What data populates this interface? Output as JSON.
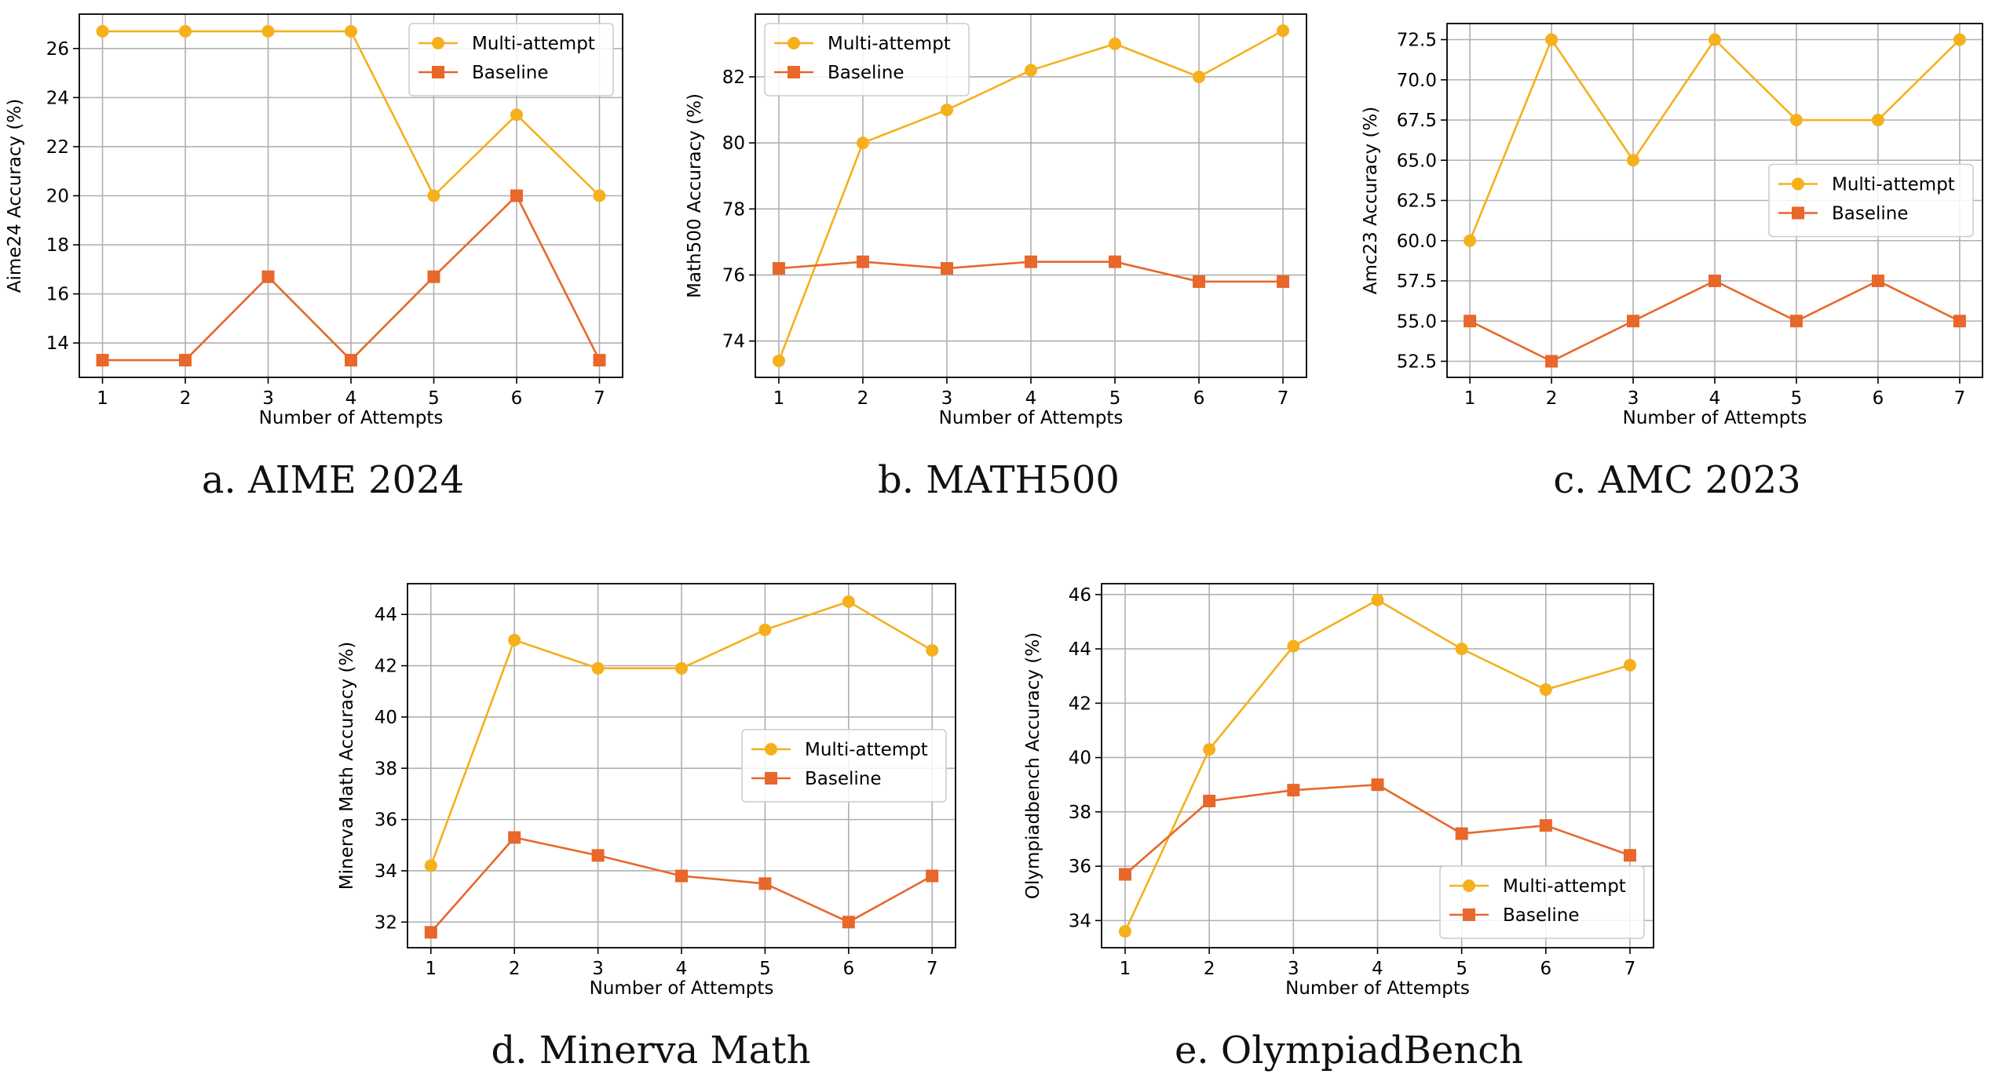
{
  "colors": {
    "multi_attempt": "#f5b01c",
    "baseline": "#e8672a",
    "grid": "#b0b0b0",
    "axis": "#000000"
  },
  "chart_data": [
    {
      "type": "line",
      "caption": "a. AIME 2024",
      "xlabel": "Number of Attempts",
      "ylabel": "Aime24 Accuracy (%)",
      "x": [
        1,
        2,
        3,
        4,
        5,
        6,
        7
      ],
      "xlim": [
        0.72,
        7.28
      ],
      "ylim": [
        12.6,
        27.4
      ],
      "yticks": [
        14,
        16,
        18,
        20,
        22,
        24,
        26
      ],
      "ytick_labels": [
        "14",
        "16",
        "18",
        "20",
        "22",
        "24",
        "26"
      ],
      "grid": true,
      "legend_position": "top-right",
      "series": [
        {
          "name": "Multi-attempt",
          "values": [
            26.7,
            26.7,
            26.7,
            26.7,
            20.0,
            23.3,
            20.0
          ],
          "marker": "circle",
          "color": "#f5b01c"
        },
        {
          "name": "Baseline",
          "values": [
            13.3,
            13.3,
            16.7,
            13.3,
            16.7,
            20.0,
            13.3
          ],
          "marker": "square",
          "color": "#e8672a"
        }
      ]
    },
    {
      "type": "line",
      "caption": "b. MATH500",
      "xlabel": "Number of Attempts",
      "ylabel": "Math500 Accuracy (%)",
      "x": [
        1,
        2,
        3,
        4,
        5,
        6,
        7
      ],
      "xlim": [
        0.72,
        7.28
      ],
      "ylim": [
        72.9,
        83.9
      ],
      "yticks": [
        74,
        76,
        78,
        80,
        82
      ],
      "ytick_labels": [
        "74",
        "76",
        "78",
        "80",
        "82"
      ],
      "grid": true,
      "legend_position": "top-left",
      "series": [
        {
          "name": "Multi-attempt",
          "values": [
            73.4,
            80.0,
            81.0,
            82.2,
            83.0,
            82.0,
            83.4
          ],
          "marker": "circle",
          "color": "#f5b01c"
        },
        {
          "name": "Baseline",
          "values": [
            76.2,
            76.4,
            76.2,
            76.4,
            76.4,
            75.8,
            75.8
          ],
          "marker": "square",
          "color": "#e8672a"
        }
      ]
    },
    {
      "type": "line",
      "caption": "c. AMC 2023",
      "xlabel": "Number of Attempts",
      "ylabel": "Amc23 Accuracy (%)",
      "x": [
        1,
        2,
        3,
        4,
        5,
        6,
        7
      ],
      "xlim": [
        0.72,
        7.28
      ],
      "ylim": [
        51.5,
        73.5
      ],
      "yticks": [
        52.5,
        55.0,
        57.5,
        60.0,
        62.5,
        65.0,
        67.5,
        70.0,
        72.5
      ],
      "ytick_labels": [
        "52.5",
        "55.0",
        "57.5",
        "60.0",
        "62.5",
        "65.0",
        "67.5",
        "70.0",
        "72.5"
      ],
      "grid": true,
      "legend_position": "center-right",
      "series": [
        {
          "name": "Multi-attempt",
          "values": [
            60.0,
            72.5,
            65.0,
            72.5,
            67.5,
            67.5,
            72.5
          ],
          "marker": "circle",
          "color": "#f5b01c"
        },
        {
          "name": "Baseline",
          "values": [
            55.0,
            52.5,
            55.0,
            57.5,
            55.0,
            57.5,
            55.0
          ],
          "marker": "square",
          "color": "#e8672a"
        }
      ]
    },
    {
      "type": "line",
      "caption": "d. Minerva Math",
      "xlabel": "Number of Attempts",
      "ylabel": "Minerva Math Accuracy (%)",
      "x": [
        1,
        2,
        3,
        4,
        5,
        6,
        7
      ],
      "xlim": [
        0.72,
        7.28
      ],
      "ylim": [
        31.0,
        45.2
      ],
      "yticks": [
        32,
        34,
        36,
        38,
        40,
        42,
        44
      ],
      "ytick_labels": [
        "32",
        "34",
        "36",
        "38",
        "40",
        "42",
        "44"
      ],
      "grid": true,
      "legend_position": "center-right",
      "series": [
        {
          "name": "Multi-attempt",
          "values": [
            34.2,
            43.0,
            41.9,
            41.9,
            43.4,
            44.5,
            42.6
          ],
          "marker": "circle",
          "color": "#f5b01c"
        },
        {
          "name": "Baseline",
          "values": [
            31.6,
            35.3,
            34.6,
            33.8,
            33.5,
            32.0,
            33.8
          ],
          "marker": "square",
          "color": "#e8672a"
        }
      ]
    },
    {
      "type": "line",
      "caption": "e. OlympiadBench",
      "xlabel": "Number of Attempts",
      "ylabel": "Olympiadbench Accuracy (%)",
      "x": [
        1,
        2,
        3,
        4,
        5,
        6,
        7
      ],
      "xlim": [
        0.72,
        7.28
      ],
      "ylim": [
        33.0,
        46.4
      ],
      "yticks": [
        34,
        36,
        38,
        40,
        42,
        44,
        46
      ],
      "ytick_labels": [
        "34",
        "36",
        "38",
        "40",
        "42",
        "44",
        "46"
      ],
      "grid": true,
      "legend_position": "bottom-right",
      "series": [
        {
          "name": "Multi-attempt",
          "values": [
            33.6,
            40.3,
            44.1,
            45.8,
            44.0,
            42.5,
            43.4
          ],
          "marker": "circle",
          "color": "#f5b01c"
        },
        {
          "name": "Baseline",
          "values": [
            35.7,
            38.4,
            38.8,
            39.0,
            37.2,
            37.5,
            36.4
          ],
          "marker": "square",
          "color": "#e8672a"
        }
      ]
    }
  ]
}
